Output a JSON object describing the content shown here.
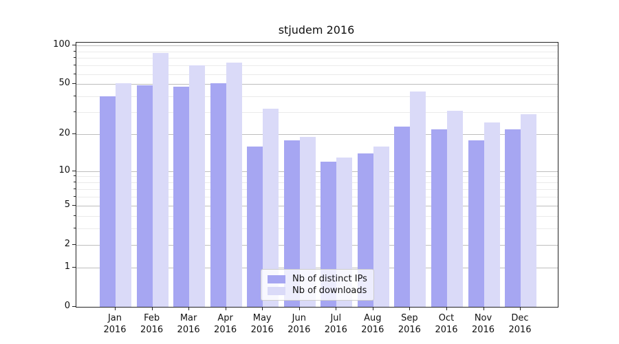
{
  "title": "stjudem 2016",
  "colors": {
    "distinct_ips": "#a6a6f2",
    "downloads": "#dadaf8",
    "grid_major": "#bdbdbd",
    "grid_minor": "#eaeaea",
    "axis": "#222222",
    "legend_border": "#cccccc"
  },
  "legend": {
    "items": [
      {
        "label": "Nb of distinct IPs"
      },
      {
        "label": "Nb of downloads"
      }
    ]
  },
  "x_axis": {
    "months": [
      "Jan",
      "Feb",
      "Mar",
      "Apr",
      "May",
      "Jun",
      "Jul",
      "Aug",
      "Sep",
      "Oct",
      "Nov",
      "Dec"
    ],
    "year": "2016"
  },
  "y_axis": {
    "tick_values": [
      0,
      1,
      2,
      5,
      10,
      20,
      50,
      100
    ],
    "minor_values": [
      3,
      4,
      6,
      7,
      8,
      9,
      30,
      40,
      60,
      70,
      80,
      90
    ],
    "scale": "log10(value+1)"
  },
  "chart_data": {
    "type": "bar",
    "title": "stjudem 2016",
    "categories": [
      "Jan 2016",
      "Feb 2016",
      "Mar 2016",
      "Apr 2016",
      "May 2016",
      "Jun 2016",
      "Jul 2016",
      "Aug 2016",
      "Sep 2016",
      "Oct 2016",
      "Nov 2016",
      "Dec 2016"
    ],
    "series": [
      {
        "name": "Nb of distinct IPs",
        "color": "#a6a6f2",
        "values": [
          40,
          49,
          48,
          51,
          16,
          18,
          12,
          14,
          23,
          22,
          18,
          22
        ]
      },
      {
        "name": "Nb of downloads",
        "color": "#dadaf8",
        "values": [
          51,
          87,
          70,
          74,
          32,
          19,
          13,
          16,
          44,
          31,
          25,
          29
        ]
      }
    ],
    "yscale": "symlog-like: position proportional to log10(value+1)",
    "yticks": [
      0,
      1,
      2,
      5,
      10,
      20,
      50,
      100
    ],
    "ylim": [
      0,
      106
    ],
    "grid": "horizontal, major and minor",
    "legend_position": "lower center inside axes"
  }
}
